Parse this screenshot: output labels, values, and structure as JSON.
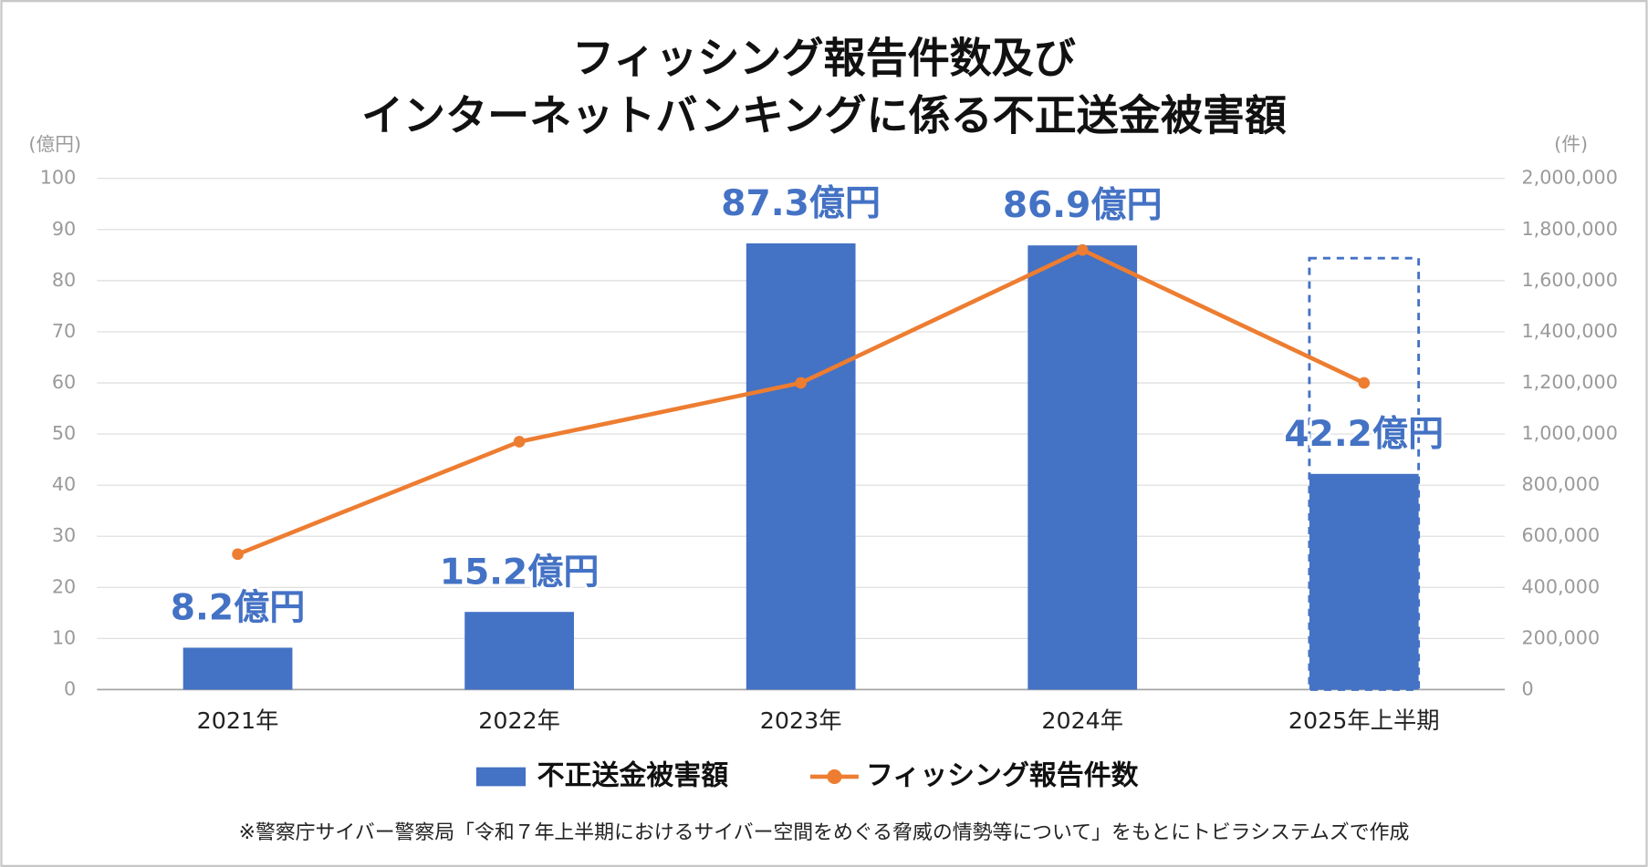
{
  "chart_data": {
    "type": "bar",
    "title": [
      "フィッシング報告件数及び",
      "インターネットバンキングに係る不正送金被害額"
    ],
    "y_axis_label": "(億円)",
    "y2_axis_label": "(件)",
    "categories": [
      "2021年",
      "2022年",
      "2023年",
      "2024年",
      "2025年上半期"
    ],
    "series": [
      {
        "name": "不正送金被害額",
        "type": "bar",
        "color": "#4472c4",
        "values": [
          8.2,
          15.2,
          87.3,
          86.9,
          42.2
        ],
        "value_labels": [
          "8.2億円",
          "15.2億円",
          "87.3億円",
          "86.9億円",
          "42.2億円"
        ],
        "outline_values": [
          null,
          null,
          null,
          null,
          84.4
        ]
      },
      {
        "name": "フィッシング報告件数",
        "type": "line",
        "color": "#ed7d31",
        "axis": "y2",
        "values": [
          530000,
          970000,
          1200000,
          1720000,
          1200000
        ]
      }
    ],
    "ylim": [
      0,
      100
    ],
    "yticks": [
      0,
      10,
      20,
      30,
      40,
      50,
      60,
      70,
      80,
      90,
      100
    ],
    "y2lim": [
      0,
      2000000
    ],
    "y2ticks": [
      0,
      {
        "value": 200000,
        "label": "200,000"
      },
      {
        "value": 400000,
        "label": "400,000"
      },
      {
        "value": 600000,
        "label": "600,000"
      },
      {
        "value": 800000,
        "label": "800,000"
      },
      {
        "value": 1000000,
        "label": "1,000,000"
      },
      {
        "value": 1200000,
        "label": "1,200,000"
      },
      {
        "value": 1400000,
        "label": "1,400,000"
      },
      {
        "value": 1600000,
        "label": "1,600,000"
      },
      {
        "value": 1800000,
        "label": "1,800,000"
      },
      {
        "value": 2000000,
        "label": "2,000,000"
      }
    ],
    "grid": true,
    "legend": "bottom",
    "footnote": "※警察庁サイバー警察局「令和７年上半期におけるサイバー空間をめぐる脅威の情勢等について」をもとにトビラシステムズで作成"
  }
}
